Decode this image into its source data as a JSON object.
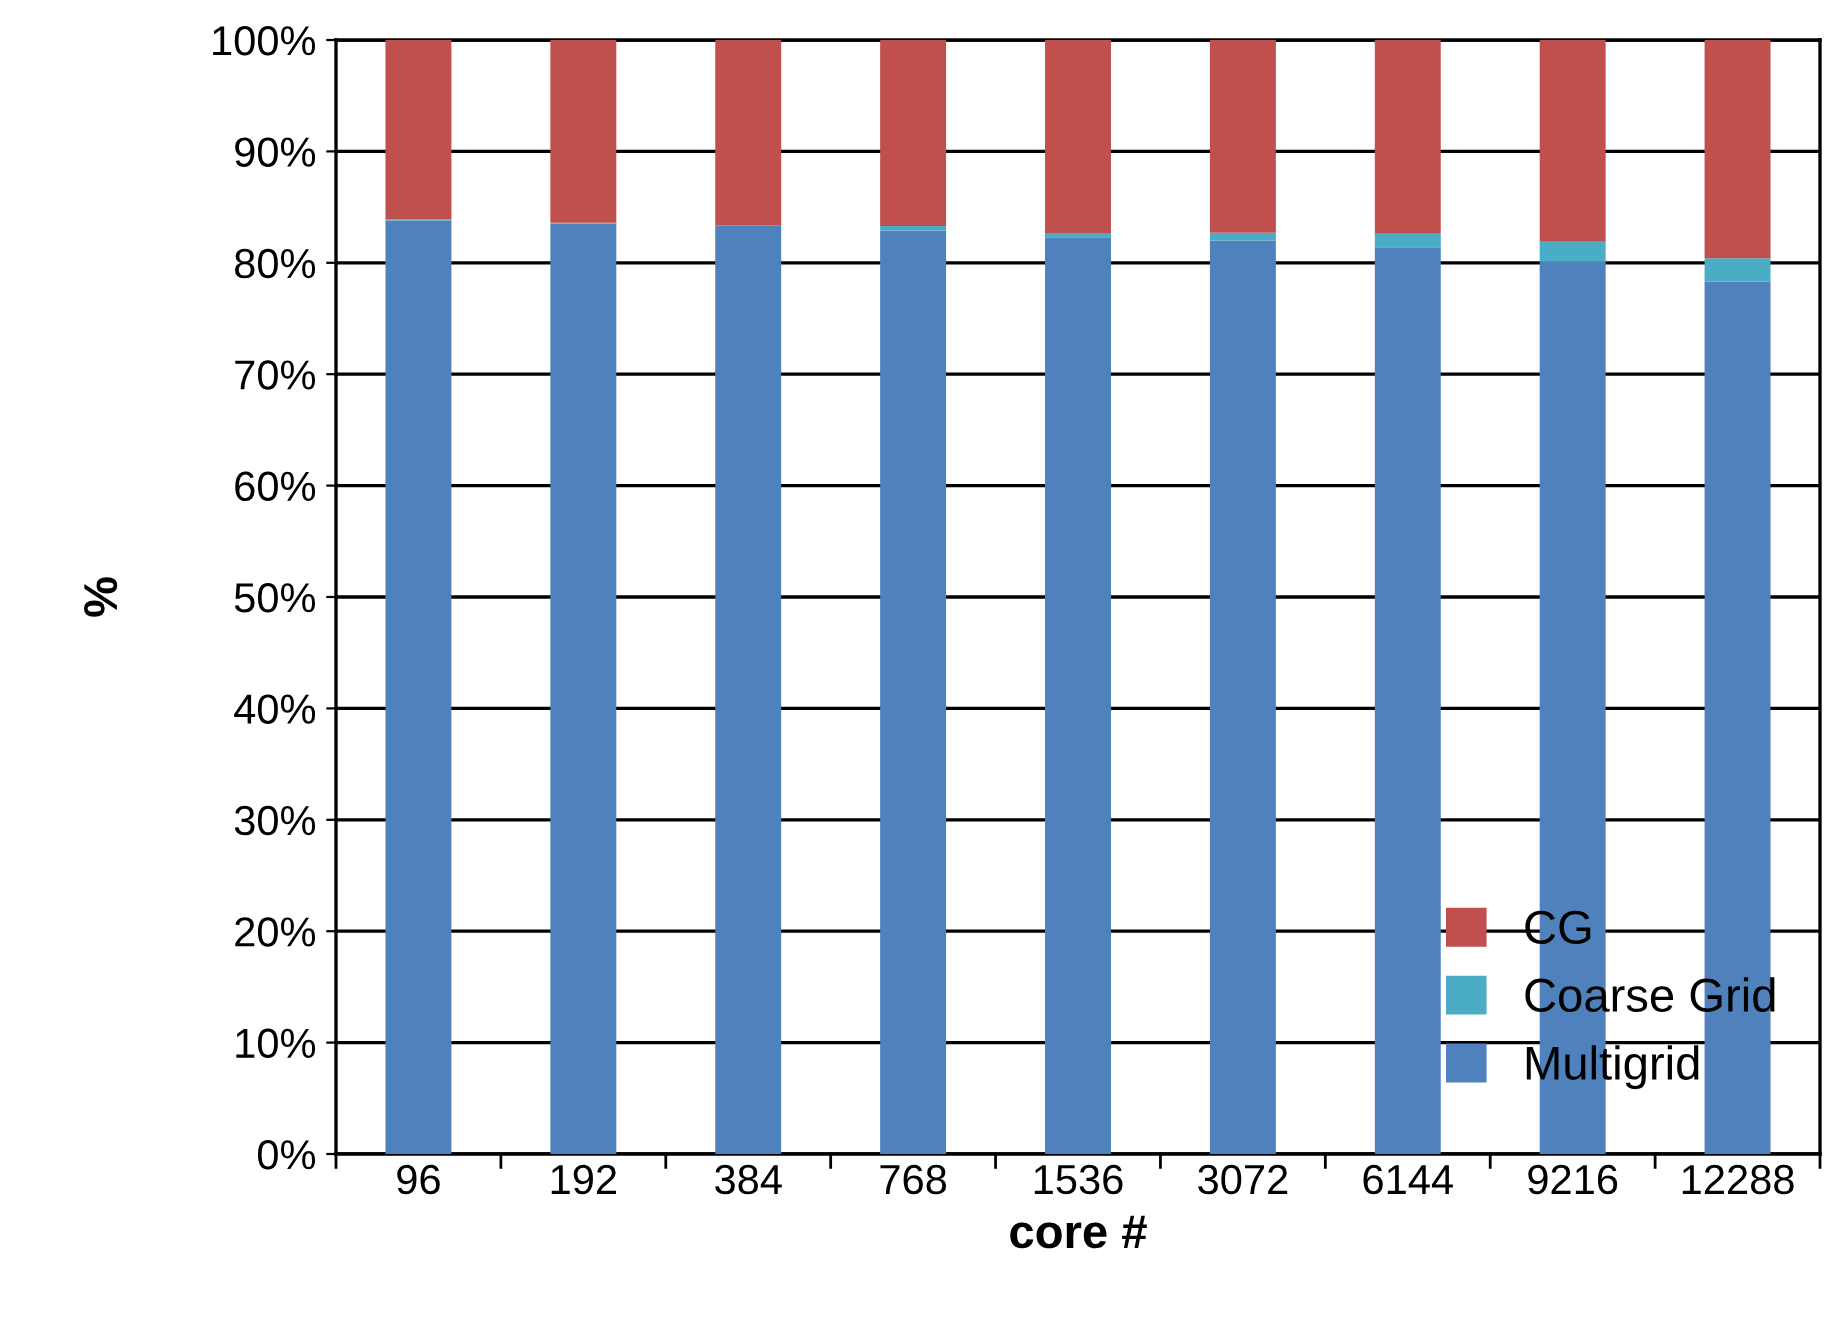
{
  "chart_data": {
    "type": "bar",
    "stacked": true,
    "xlabel": "core #",
    "ylabel": "%",
    "categories": [
      "96",
      "192",
      "384",
      "768",
      "1536",
      "3072",
      "6144",
      "9216",
      "12288"
    ],
    "series": [
      {
        "name": "Multigrid",
        "color": "#4f81bd",
        "values": [
          83.8,
          83.5,
          83.3,
          82.9,
          82.3,
          82.0,
          81.4,
          80.1,
          78.3
        ]
      },
      {
        "name": "Coarse Grid",
        "color": "#4bacc6",
        "values": [
          0.1,
          0.1,
          0.1,
          0.4,
          0.3,
          0.7,
          1.2,
          1.8,
          2.1
        ]
      },
      {
        "name": "CG",
        "color": "#c0504d",
        "values": [
          16.1,
          16.4,
          16.6,
          16.7,
          17.4,
          17.3,
          17.4,
          18.1,
          19.6
        ]
      }
    ],
    "ylim": [
      0,
      100
    ],
    "yticks": [
      {
        "value": 0,
        "label": "0%"
      },
      {
        "value": 10,
        "label": "10%"
      },
      {
        "value": 20,
        "label": "20%"
      },
      {
        "value": 30,
        "label": "30%"
      },
      {
        "value": 40,
        "label": "40%"
      },
      {
        "value": 50,
        "label": "50%"
      },
      {
        "value": 60,
        "label": "60%"
      },
      {
        "value": 70,
        "label": "70%"
      },
      {
        "value": 80,
        "label": "80%"
      },
      {
        "value": 90,
        "label": "90%"
      },
      {
        "value": 100,
        "label": "100%"
      }
    ],
    "grid": "y",
    "legend": "bottom right"
  }
}
